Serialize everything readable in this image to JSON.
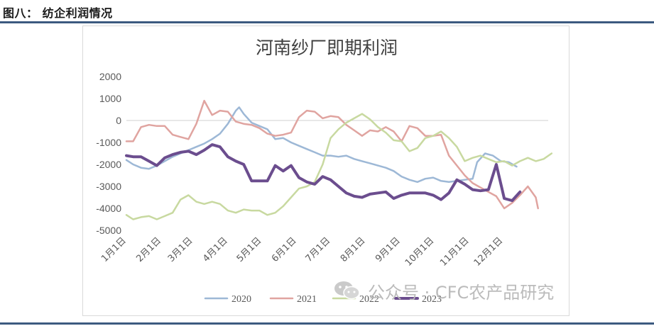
{
  "header": {
    "title": "图八：  纺企利润情况"
  },
  "watermark": {
    "text": "公众号 · CFC农产品研究",
    "icon": "wechat-icon"
  },
  "chart_data": {
    "type": "line",
    "title": "河南纱厂即期利润",
    "xlabel": "",
    "ylabel": "",
    "ylim": [
      -5000,
      2000
    ],
    "yticks": [
      2000,
      1000,
      0,
      -1000,
      -2000,
      -3000,
      -4000,
      -5000
    ],
    "ytick_labels": [
      "2000",
      "1000",
      "0",
      "-1000",
      "-2000",
      "-3000",
      "-4000",
      "-5000"
    ],
    "x_ticks": [
      {
        "label": "1月1日",
        "day": 1
      },
      {
        "label": "2月1日",
        "day": 32
      },
      {
        "label": "3月1日",
        "day": 60
      },
      {
        "label": "4月1日",
        "day": 91
      },
      {
        "label": "5月1日",
        "day": 121
      },
      {
        "label": "6月1日",
        "day": 152
      },
      {
        "label": "7月1日",
        "day": 182
      },
      {
        "label": "8月1日",
        "day": 213
      },
      {
        "label": "9月1日",
        "day": 244
      },
      {
        "label": "10月1日",
        "day": 274
      },
      {
        "label": "11月1日",
        "day": 305
      },
      {
        "label": "12月1日",
        "day": 335
      }
    ],
    "x_range": [
      1,
      366
    ],
    "legend_position": "bottom",
    "grid": false,
    "series": [
      {
        "name": "2020",
        "color": "#9db8d6",
        "width": 2.5,
        "points": [
          [
            1,
            -1800
          ],
          [
            7,
            -2000
          ],
          [
            14,
            -2150
          ],
          [
            21,
            -2200
          ],
          [
            28,
            -2050
          ],
          [
            35,
            -1850
          ],
          [
            42,
            -1650
          ],
          [
            49,
            -1500
          ],
          [
            56,
            -1350
          ],
          [
            63,
            -1200
          ],
          [
            70,
            -1050
          ],
          [
            77,
            -850
          ],
          [
            84,
            -600
          ],
          [
            91,
            -150
          ],
          [
            98,
            450
          ],
          [
            101,
            600
          ],
          [
            105,
            300
          ],
          [
            112,
            -100
          ],
          [
            119,
            -250
          ],
          [
            126,
            -400
          ],
          [
            133,
            -850
          ],
          [
            140,
            -800
          ],
          [
            147,
            -1000
          ],
          [
            154,
            -1150
          ],
          [
            161,
            -1300
          ],
          [
            168,
            -1450
          ],
          [
            175,
            -1600
          ],
          [
            182,
            -1600
          ],
          [
            189,
            -1650
          ],
          [
            196,
            -1600
          ],
          [
            203,
            -1750
          ],
          [
            210,
            -1850
          ],
          [
            217,
            -1950
          ],
          [
            224,
            -2050
          ],
          [
            231,
            -2150
          ],
          [
            238,
            -2300
          ],
          [
            245,
            -2550
          ],
          [
            252,
            -2700
          ],
          [
            259,
            -2800
          ],
          [
            266,
            -2650
          ],
          [
            273,
            -2600
          ],
          [
            280,
            -2750
          ],
          [
            287,
            -2800
          ],
          [
            294,
            -2750
          ],
          [
            301,
            -2700
          ],
          [
            308,
            -2650
          ],
          [
            312,
            -1900
          ],
          [
            319,
            -1500
          ],
          [
            326,
            -1600
          ],
          [
            333,
            -1850
          ],
          [
            340,
            -1900
          ],
          [
            347,
            -2100
          ]
        ]
      },
      {
        "name": "2021",
        "color": "#e0a4a0",
        "width": 2.5,
        "points": [
          [
            1,
            -950
          ],
          [
            7,
            -950
          ],
          [
            14,
            -300
          ],
          [
            21,
            -200
          ],
          [
            28,
            -250
          ],
          [
            35,
            -250
          ],
          [
            42,
            -650
          ],
          [
            49,
            -750
          ],
          [
            56,
            -850
          ],
          [
            63,
            -150
          ],
          [
            70,
            900
          ],
          [
            77,
            250
          ],
          [
            84,
            450
          ],
          [
            91,
            400
          ],
          [
            98,
            -50
          ],
          [
            105,
            -150
          ],
          [
            112,
            -200
          ],
          [
            119,
            -350
          ],
          [
            126,
            -600
          ],
          [
            133,
            -700
          ],
          [
            140,
            -650
          ],
          [
            147,
            -550
          ],
          [
            154,
            150
          ],
          [
            161,
            450
          ],
          [
            168,
            400
          ],
          [
            175,
            100
          ],
          [
            182,
            200
          ],
          [
            189,
            150
          ],
          [
            196,
            -200
          ],
          [
            203,
            -450
          ],
          [
            210,
            -700
          ],
          [
            217,
            -450
          ],
          [
            224,
            -500
          ],
          [
            231,
            -300
          ],
          [
            238,
            -500
          ],
          [
            245,
            -950
          ],
          [
            252,
            -250
          ],
          [
            259,
            -350
          ],
          [
            266,
            -700
          ],
          [
            273,
            -700
          ],
          [
            280,
            -650
          ],
          [
            287,
            -1600
          ],
          [
            294,
            -2050
          ],
          [
            301,
            -2500
          ],
          [
            308,
            -2850
          ],
          [
            315,
            -3050
          ],
          [
            322,
            -3250
          ],
          [
            329,
            -3450
          ],
          [
            336,
            -4000
          ],
          [
            343,
            -3750
          ],
          [
            350,
            -3400
          ],
          [
            357,
            -3000
          ],
          [
            364,
            -3500
          ],
          [
            366,
            -4000
          ]
        ]
      },
      {
        "name": "2022",
        "color": "#c8d9a0",
        "width": 2.5,
        "points": [
          [
            1,
            -4300
          ],
          [
            7,
            -4500
          ],
          [
            14,
            -4400
          ],
          [
            21,
            -4350
          ],
          [
            28,
            -4500
          ],
          [
            35,
            -4350
          ],
          [
            42,
            -4200
          ],
          [
            49,
            -3600
          ],
          [
            56,
            -3400
          ],
          [
            63,
            -3700
          ],
          [
            70,
            -3800
          ],
          [
            77,
            -3700
          ],
          [
            84,
            -3800
          ],
          [
            91,
            -4100
          ],
          [
            98,
            -4200
          ],
          [
            105,
            -4050
          ],
          [
            112,
            -4100
          ],
          [
            119,
            -4100
          ],
          [
            126,
            -4300
          ],
          [
            133,
            -4200
          ],
          [
            140,
            -3900
          ],
          [
            147,
            -3500
          ],
          [
            154,
            -3100
          ],
          [
            161,
            -3000
          ],
          [
            168,
            -2800
          ],
          [
            175,
            -2000
          ],
          [
            182,
            -800
          ],
          [
            189,
            -400
          ],
          [
            196,
            -100
          ],
          [
            203,
            100
          ],
          [
            210,
            300
          ],
          [
            217,
            50
          ],
          [
            224,
            -300
          ],
          [
            231,
            -550
          ],
          [
            238,
            -900
          ],
          [
            245,
            -950
          ],
          [
            252,
            -1400
          ],
          [
            259,
            -1250
          ],
          [
            266,
            -800
          ],
          [
            273,
            -700
          ],
          [
            280,
            -500
          ],
          [
            287,
            -800
          ],
          [
            294,
            -1200
          ],
          [
            301,
            -1850
          ],
          [
            308,
            -1700
          ],
          [
            315,
            -1600
          ],
          [
            322,
            -1750
          ],
          [
            329,
            -1900
          ],
          [
            336,
            -1850
          ],
          [
            343,
            -2050
          ],
          [
            350,
            -1850
          ],
          [
            357,
            -1700
          ],
          [
            364,
            -1850
          ],
          [
            371,
            -1750
          ],
          [
            378,
            -1500
          ]
        ]
      },
      {
        "name": "2023",
        "color": "#6b4d8e",
        "width": 4,
        "points": [
          [
            1,
            -1600
          ],
          [
            7,
            -1650
          ],
          [
            14,
            -1650
          ],
          [
            21,
            -1850
          ],
          [
            28,
            -2050
          ],
          [
            35,
            -1700
          ],
          [
            42,
            -1550
          ],
          [
            49,
            -1450
          ],
          [
            56,
            -1400
          ],
          [
            63,
            -1550
          ],
          [
            70,
            -1350
          ],
          [
            77,
            -1100
          ],
          [
            84,
            -1200
          ],
          [
            91,
            -1650
          ],
          [
            98,
            -1850
          ],
          [
            105,
            -2000
          ],
          [
            112,
            -2750
          ],
          [
            119,
            -2750
          ],
          [
            126,
            -2750
          ],
          [
            133,
            -2050
          ],
          [
            140,
            -2300
          ],
          [
            147,
            -2050
          ],
          [
            154,
            -2600
          ],
          [
            161,
            -2800
          ],
          [
            168,
            -2900
          ],
          [
            175,
            -2550
          ],
          [
            182,
            -2700
          ],
          [
            189,
            -3000
          ],
          [
            196,
            -3300
          ],
          [
            203,
            -3450
          ],
          [
            210,
            -3500
          ],
          [
            217,
            -3350
          ],
          [
            224,
            -3300
          ],
          [
            231,
            -3250
          ],
          [
            238,
            -3550
          ],
          [
            245,
            -3400
          ],
          [
            252,
            -3300
          ],
          [
            259,
            -3300
          ],
          [
            266,
            -3300
          ],
          [
            273,
            -3400
          ],
          [
            280,
            -3600
          ],
          [
            287,
            -3300
          ],
          [
            294,
            -2700
          ],
          [
            301,
            -2900
          ],
          [
            308,
            -3150
          ],
          [
            315,
            -3200
          ],
          [
            322,
            -3150
          ],
          [
            329,
            -2000
          ],
          [
            336,
            -3550
          ],
          [
            343,
            -3650
          ],
          [
            350,
            -3250
          ]
        ]
      }
    ]
  }
}
